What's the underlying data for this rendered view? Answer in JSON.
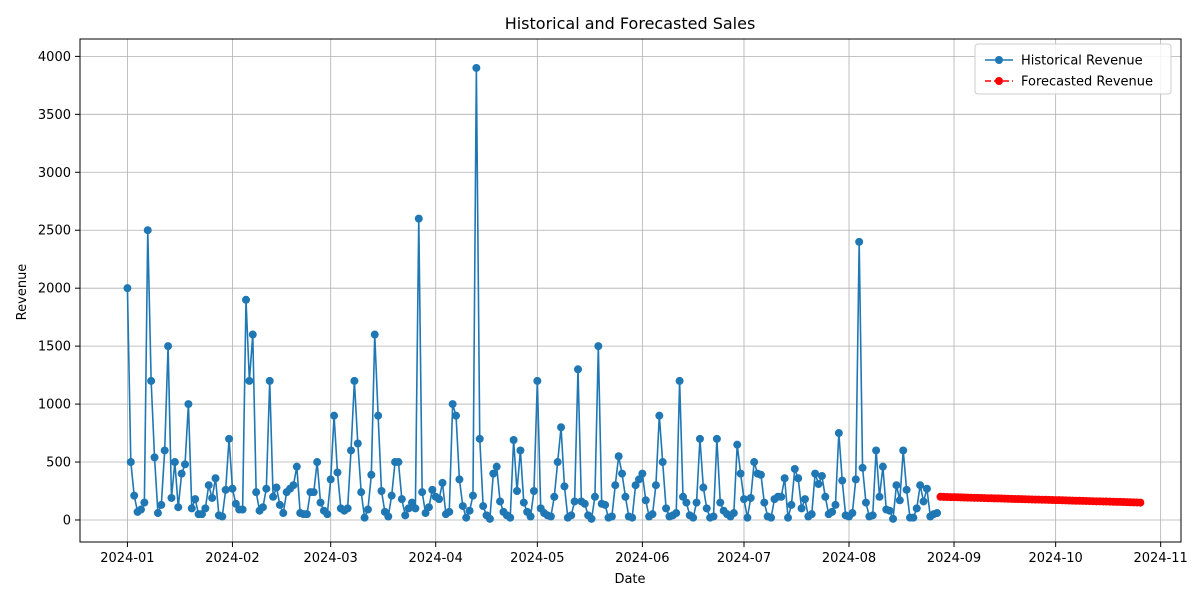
{
  "chart_data": {
    "type": "line",
    "title": "Historical and Forecasted Sales",
    "xlabel": "Date",
    "ylabel": "Revenue",
    "x_axis_type": "date",
    "xlim": [
      "2023-12-18",
      "2024-11-07"
    ],
    "ylim": [
      -190,
      4150
    ],
    "x_ticks": [
      "2024-01-01",
      "2024-02-01",
      "2024-03-01",
      "2024-04-01",
      "2024-05-01",
      "2024-06-01",
      "2024-07-01",
      "2024-08-01",
      "2024-09-01",
      "2024-10-01",
      "2024-11-01"
    ],
    "x_tick_labels": [
      "2024-01",
      "2024-02",
      "2024-03",
      "2024-04",
      "2024-05",
      "2024-06",
      "2024-07",
      "2024-08",
      "2024-09",
      "2024-10",
      "2024-11"
    ],
    "y_ticks": [
      0,
      500,
      1000,
      1500,
      2000,
      2500,
      3000,
      3500,
      4000
    ],
    "y_tick_labels": [
      "0",
      "500",
      "1000",
      "1500",
      "2000",
      "2500",
      "3000",
      "3500",
      "4000"
    ],
    "grid": true,
    "legend": "top-right",
    "series": [
      {
        "name": "Historical Revenue",
        "color": "#1f77b4",
        "line_style": "solid",
        "marker": "circle",
        "start_date": "2024-01-01",
        "step_days": 1,
        "values": [
          2000,
          500,
          210,
          70,
          90,
          150,
          2500,
          1200,
          540,
          60,
          130,
          600,
          1500,
          190,
          500,
          110,
          400,
          480,
          1000,
          100,
          180,
          50,
          50,
          100,
          300,
          190,
          360,
          40,
          30,
          260,
          700,
          270,
          140,
          90,
          90,
          1900,
          1200,
          1600,
          240,
          80,
          110,
          270,
          1200,
          200,
          280,
          130,
          60,
          240,
          270,
          300,
          460,
          60,
          50,
          50,
          240,
          240,
          500,
          150,
          80,
          50,
          350,
          900,
          410,
          100,
          80,
          100,
          600,
          1200,
          660,
          240,
          20,
          90,
          390,
          1600,
          900,
          250,
          70,
          30,
          210,
          500,
          500,
          180,
          40,
          100,
          150,
          100,
          2600,
          240,
          60,
          110,
          260,
          200,
          180,
          320,
          50,
          70,
          1000,
          900,
          350,
          120,
          20,
          80,
          210,
          3900,
          700,
          120,
          40,
          10,
          400,
          460,
          160,
          70,
          40,
          20,
          690,
          250,
          600,
          150,
          70,
          30,
          250,
          1200,
          100,
          60,
          40,
          30,
          200,
          500,
          800,
          290,
          20,
          40,
          160,
          1300,
          160,
          140,
          40,
          10,
          200,
          1500,
          140,
          130,
          20,
          30,
          300,
          550,
          400,
          200,
          30,
          20,
          300,
          350,
          400,
          170,
          30,
          50,
          300,
          900,
          500,
          100,
          30,
          40,
          60,
          1200,
          200,
          150,
          40,
          20,
          150,
          700,
          280,
          100,
          20,
          30,
          700,
          150,
          80,
          50,
          30,
          60,
          650,
          400,
          180,
          20,
          190,
          500,
          400,
          390,
          150,
          30,
          20,
          180,
          200,
          200,
          360,
          20,
          130,
          440,
          360,
          100,
          180,
          30,
          50,
          400,
          310,
          380,
          200,
          50,
          70,
          130,
          750,
          340,
          40,
          30,
          60,
          350,
          2400,
          450,
          150,
          30,
          40,
          600,
          200,
          460,
          90,
          80,
          10,
          300,
          170,
          600,
          260,
          20,
          20,
          100,
          300,
          160,
          270,
          30,
          50,
          60
        ]
      },
      {
        "name": "Forecasted Revenue",
        "color": "#ff0000",
        "line_style": "dashed",
        "marker": "circle",
        "start_date": "2024-08-28",
        "step_days": 1,
        "values": [
          200,
          199,
          198,
          197,
          197,
          196,
          195,
          194,
          193,
          192,
          191,
          191,
          190,
          189,
          188,
          187,
          186,
          186,
          185,
          184,
          183,
          182,
          181,
          181,
          180,
          179,
          178,
          177,
          176,
          176,
          175,
          174,
          173,
          172,
          171,
          171,
          170,
          169,
          168,
          167,
          166,
          166,
          165,
          164,
          163,
          162,
          161,
          161,
          160,
          159,
          158,
          157,
          156,
          156,
          155,
          154,
          153,
          152,
          151,
          150
        ]
      }
    ]
  }
}
